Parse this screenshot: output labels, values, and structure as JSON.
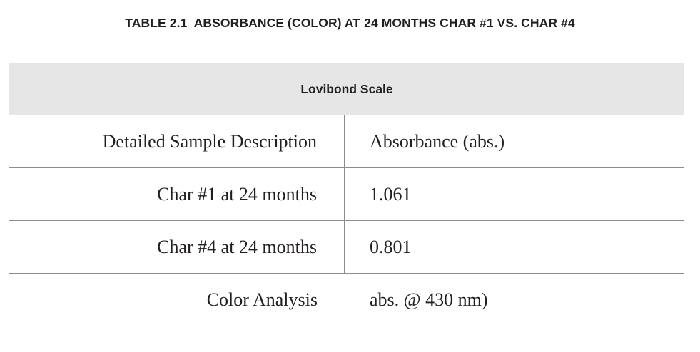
{
  "title": "TABLE 2.1  ABSORBANCE (COLOR) AT 24 MONTHS CHAR #1 VS. CHAR #4",
  "table": {
    "header_band": "Lovibond Scale",
    "rows": [
      {
        "left": "Detailed Sample Description",
        "right": "Absorbance (abs.)"
      },
      {
        "left": "Char #1 at 24 months",
        "right": "1.061"
      },
      {
        "left": "Char #4 at 24 months",
        "right": "0.801"
      },
      {
        "left": "Color Analysis",
        "right": "abs. @ 430 nm)"
      }
    ]
  },
  "colors": {
    "band_background": "#e6e6e7",
    "text": "#231f20",
    "rule": "#8c8c8c"
  }
}
